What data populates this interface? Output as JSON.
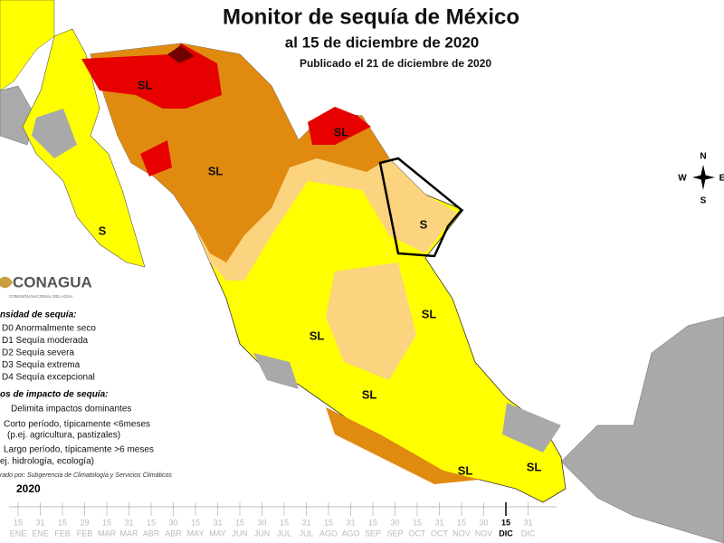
{
  "header": {
    "title": "Monitor de sequía de México",
    "subtitle": "al 15 de diciembre de 2020",
    "published": "Publicado el 21 de diciembre de 2020"
  },
  "map_labels": [
    "SL",
    "SL",
    "SL",
    "S",
    "S",
    "SL",
    "SL",
    "SL",
    "SL",
    "SL"
  ],
  "compass": {
    "north": "N",
    "west": "W",
    "east": "E",
    "south": "S"
  },
  "logo": {
    "name": "CONAGUA",
    "tagline": "COMISIÓN NACIONAL DEL AGUA"
  },
  "legend": {
    "title": "nsidad de sequía:",
    "items": [
      "D0 Anormalmente seco",
      "D1 Sequía moderada",
      "D2 Sequía severa",
      "D3 Sequía extrema",
      "D4 Sequía excepcional"
    ]
  },
  "impact_legend": {
    "title": "os de impacto de sequía:",
    "items": [
      "Delimita impactos dominantes",
      "Corto período, típicamente <6meses",
      "(p.ej. agricultura, pastizales)",
      "Largo período, típicamente >6 meses",
      "ej. hidrología, ecología)"
    ]
  },
  "credit": "rado por: Subgerencia de Climatología y Servicios Climáticos",
  "timeline": {
    "year": "2020",
    "days": [
      "15",
      "31",
      "15",
      "29",
      "15",
      "31",
      "15",
      "30",
      "15",
      "31",
      "15",
      "30",
      "15",
      "31",
      "15",
      "31",
      "15",
      "30",
      "15",
      "31",
      "15",
      "30",
      "15",
      "31"
    ],
    "months": [
      "ENE",
      "ENE",
      "FEB",
      "FEB",
      "MAR",
      "MAR",
      "ABR",
      "ABR",
      "MAY",
      "MAY",
      "JUN",
      "JUN",
      "JUL",
      "JUL",
      "AGO",
      "AGO",
      "SEP",
      "SEP",
      "OCT",
      "OCT",
      "NOV",
      "NOV",
      "DIC",
      "DIC"
    ]
  }
}
